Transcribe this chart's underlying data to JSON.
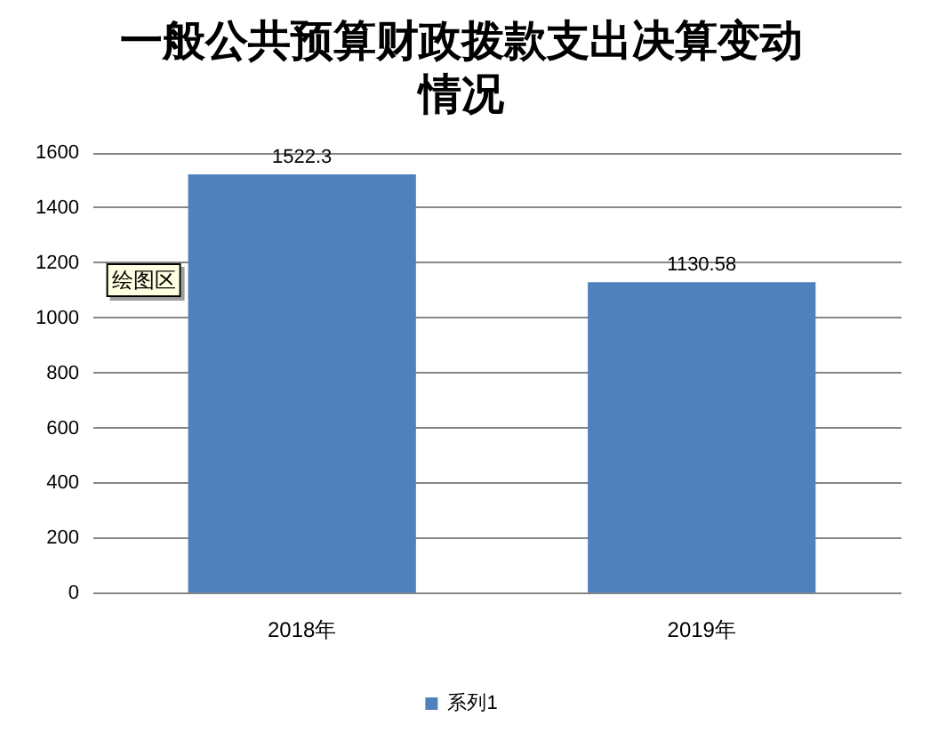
{
  "chart_data": {
    "type": "bar",
    "title": "一般公共预算财政拨款支出决算变动情况",
    "categories": [
      "2018年",
      "2019年"
    ],
    "series": [
      {
        "name": "系列1",
        "color": "#4f81bd",
        "values": [
          1522.3,
          1130.58
        ]
      }
    ],
    "ylim": [
      0,
      1600
    ],
    "yticks": [
      0,
      200,
      400,
      600,
      800,
      1000,
      1200,
      1400,
      1600
    ],
    "grid": "y",
    "legend": "bottom",
    "data_labels": true,
    "annotations": [
      "绘图区"
    ]
  }
}
